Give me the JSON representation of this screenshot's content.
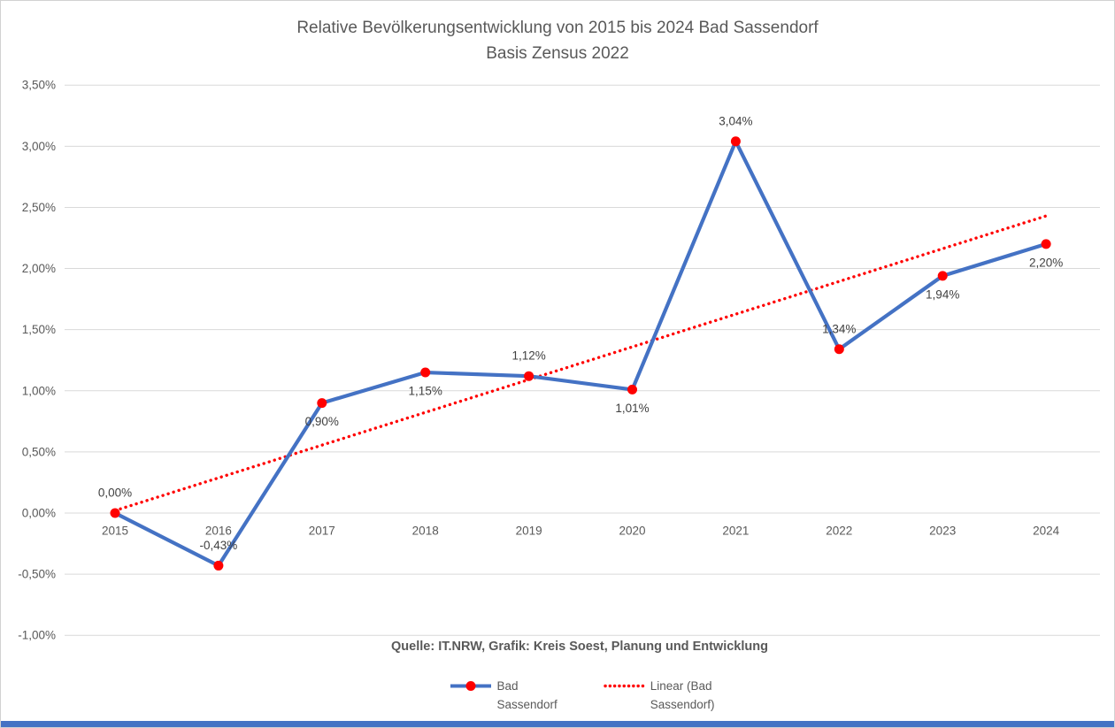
{
  "page": {
    "title_line1": "Relative Bevölkerungsentwicklung von 2015 bis 2024 Bad Sassendorf",
    "title_line2": "Basis Zensus 2022",
    "source": "Quelle: IT.NRW, Grafik: Kreis Soest, Planung und Entwicklung"
  },
  "legend": {
    "series_label": "Bad\nSassendorf",
    "trend_label": "Linear (Bad\nSassendorf)"
  },
  "colors": {
    "series_line": "#4472C4",
    "marker_fill": "#FF0000",
    "trend_line": "#FF0000",
    "gridline": "#D9D9D9",
    "axis_text": "#595959",
    "data_label_text": "#404040",
    "title_text": "#595959",
    "footer_bar": "#4472C4"
  },
  "chart_data": {
    "type": "line",
    "title": "Relative Bevölkerungsentwicklung von 2015 bis 2024 Bad Sassendorf",
    "subtitle": "Basis Zensus 2022",
    "categories": [
      "2015",
      "2016",
      "2017",
      "2018",
      "2019",
      "2020",
      "2021",
      "2022",
      "2023",
      "2024"
    ],
    "series": [
      {
        "name": "Bad Sassendorf",
        "values": [
          0.0,
          -0.43,
          0.9,
          1.15,
          1.12,
          1.01,
          3.04,
          1.34,
          1.94,
          2.2
        ],
        "labels": [
          "0,00%",
          "-0,43%",
          "0,90%",
          "1,15%",
          "1,12%",
          "1,01%",
          "3,04%",
          "1,34%",
          "1,94%",
          "2,20%"
        ],
        "label_positions": [
          "above",
          "above",
          "below",
          "below",
          "above",
          "below",
          "above",
          "above",
          "below",
          "below"
        ]
      }
    ],
    "trendline": {
      "name": "Linear (Bad Sassendorf)",
      "style": "dotted",
      "start_value": 0.02,
      "end_value": 2.43
    },
    "ylabel": "",
    "xlabel": "",
    "ylim": [
      -1.0,
      3.5
    ],
    "ytick_step": 0.5,
    "yticks": [
      {
        "v": 3.5,
        "label": "3,50%"
      },
      {
        "v": 3.0,
        "label": "3,00%"
      },
      {
        "v": 2.5,
        "label": "2,50%"
      },
      {
        "v": 2.0,
        "label": "2,00%"
      },
      {
        "v": 1.5,
        "label": "1,50%"
      },
      {
        "v": 1.0,
        "label": "1,00%"
      },
      {
        "v": 0.5,
        "label": "0,50%"
      },
      {
        "v": 0.0,
        "label": "0,00%"
      },
      {
        "v": -0.5,
        "label": "-0,50%"
      },
      {
        "v": -1.0,
        "label": "-1,00%"
      }
    ],
    "grid": "horizontal",
    "legend_position": "bottom"
  }
}
